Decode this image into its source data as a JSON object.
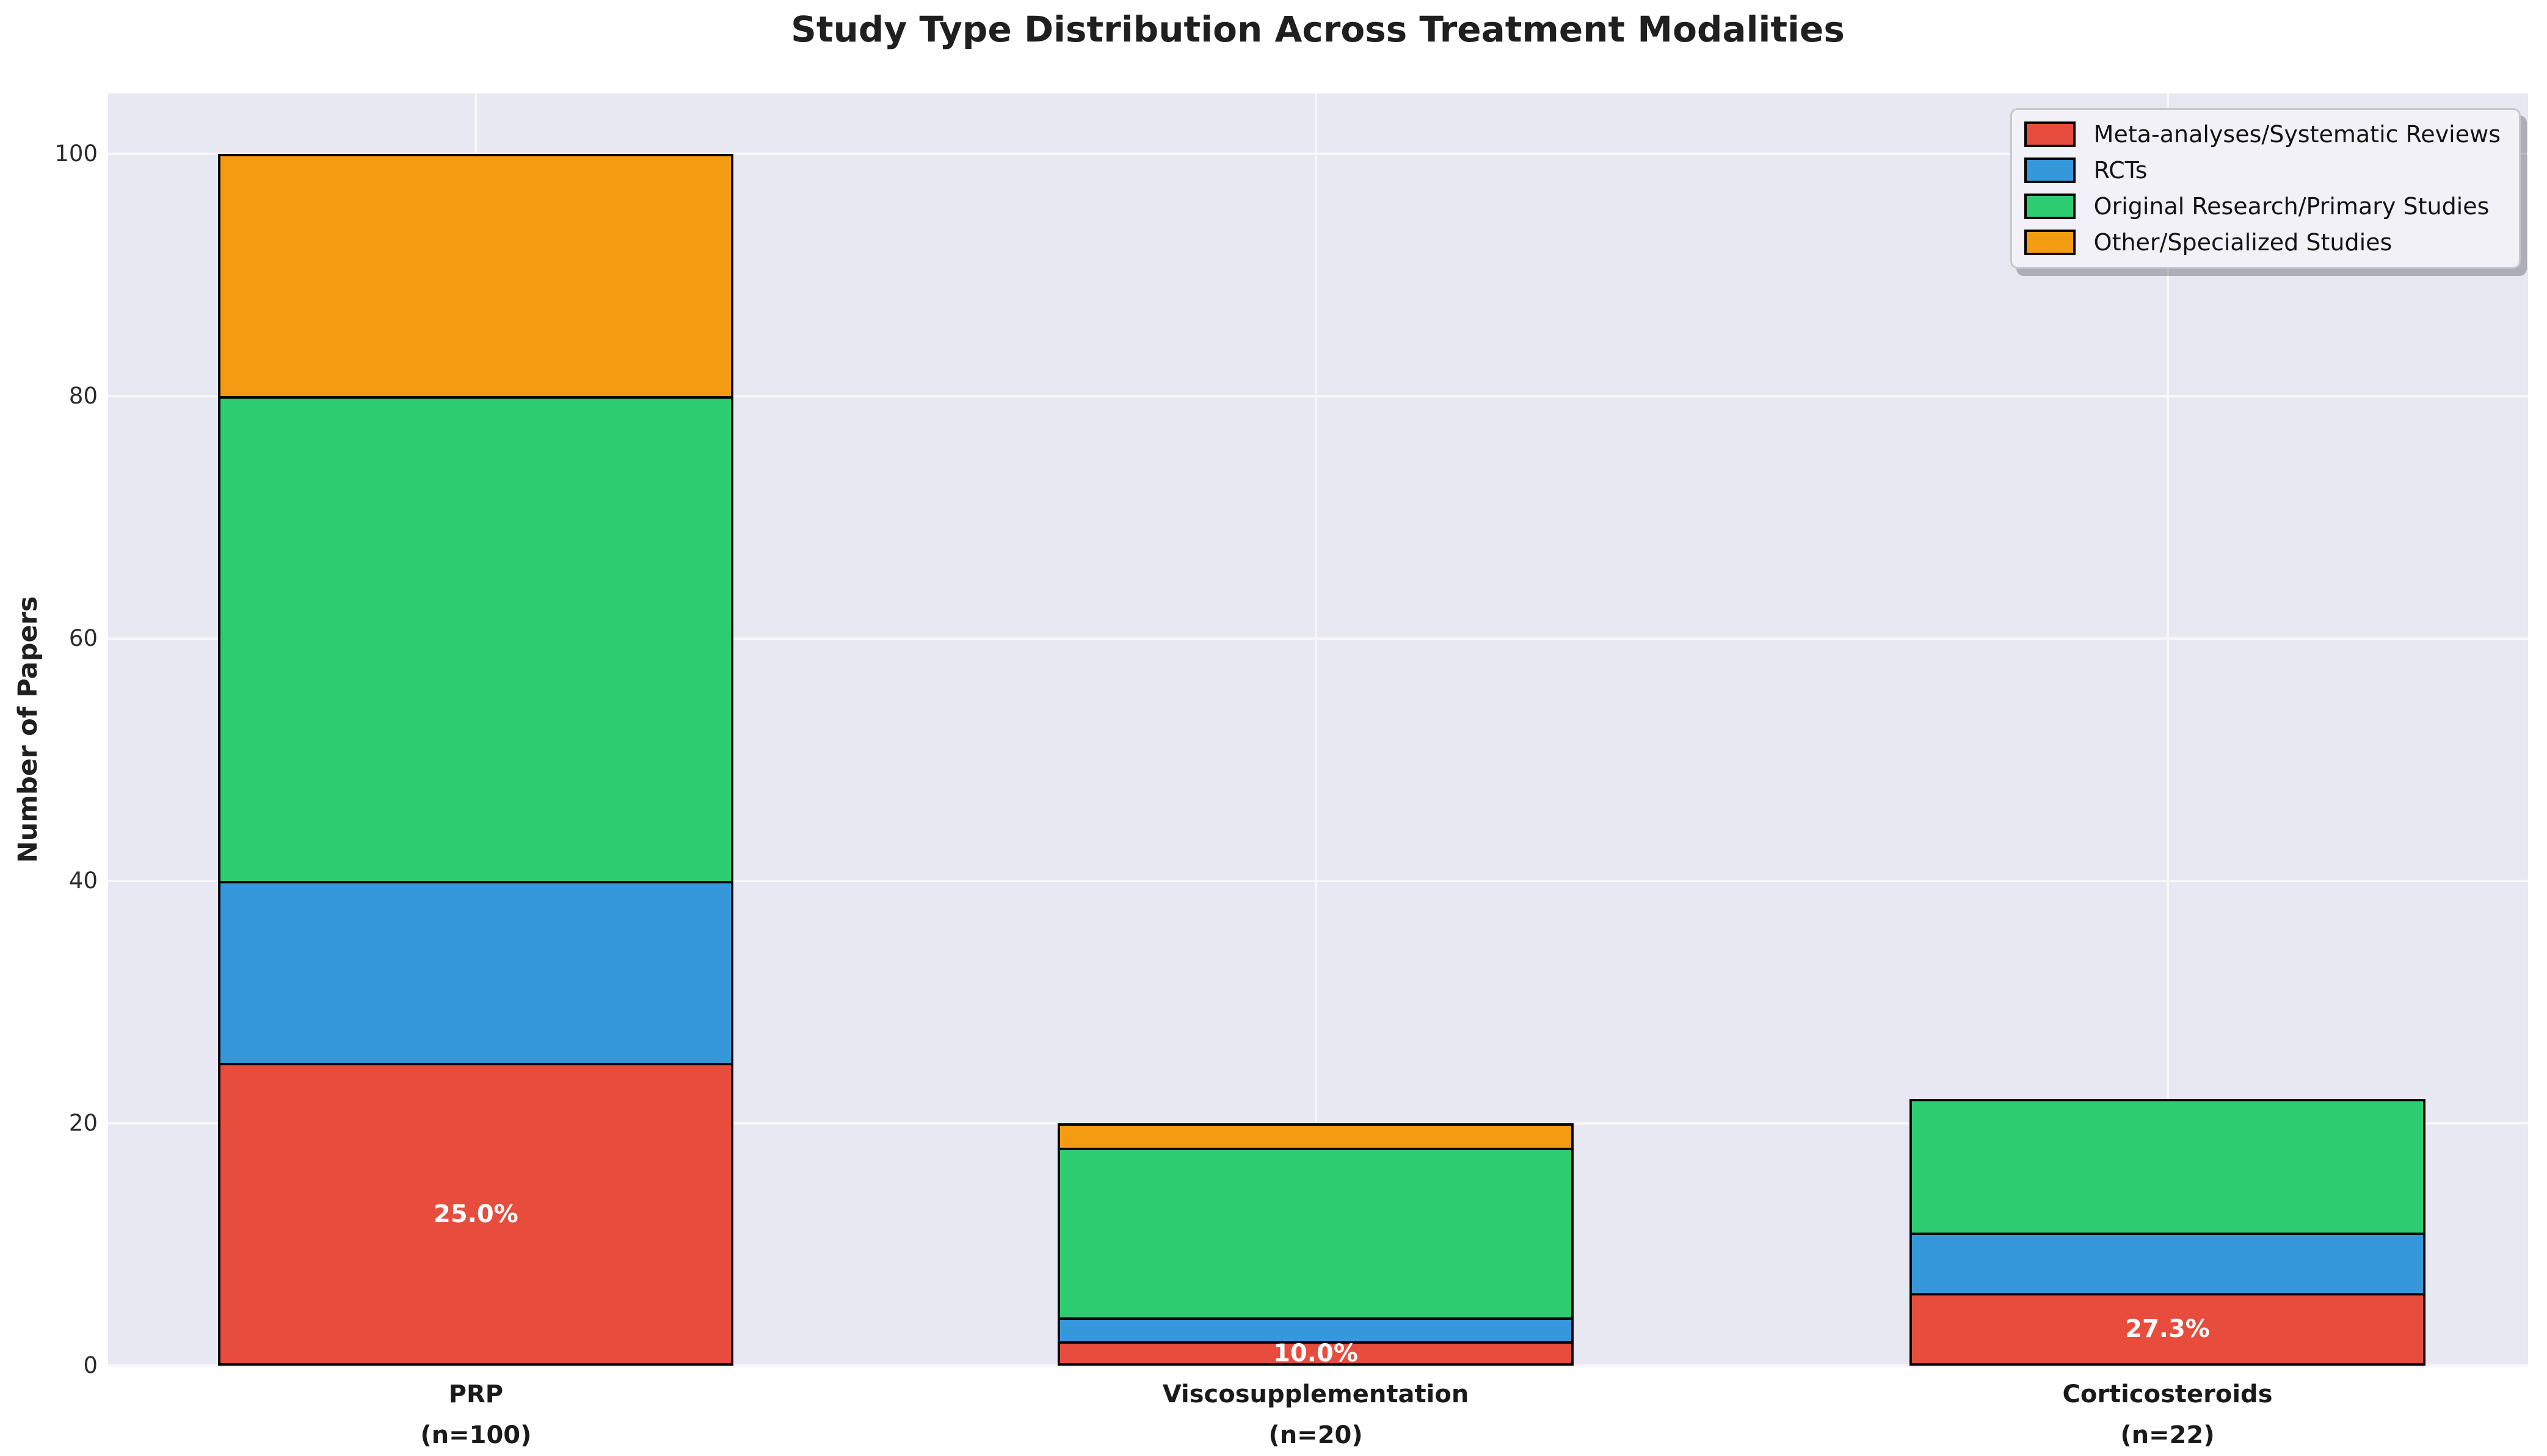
{
  "chart_data": {
    "type": "bar",
    "stacked": true,
    "title": "Study Type Distribution Across Treatment Modalities",
    "xlabel": "",
    "ylabel": "Number of Papers",
    "ylim": [
      0,
      105
    ],
    "yticks": [
      0,
      20,
      40,
      60,
      80,
      100
    ],
    "grid": true,
    "legend_position": "upper right",
    "categories": [
      {
        "label": "PRP",
        "sublabel": "(n=100)",
        "n": 100
      },
      {
        "label": "Viscosupplementation",
        "sublabel": "(n=20)",
        "n": 20
      },
      {
        "label": "Corticosteroids",
        "sublabel": "(n=22)",
        "n": 22
      }
    ],
    "series": [
      {
        "name": "Meta-analyses/Systematic Reviews",
        "color": "#e74c3c",
        "values": [
          25,
          2,
          6
        ]
      },
      {
        "name": "RCTs",
        "color": "#3498db",
        "values": [
          15,
          2,
          5
        ]
      },
      {
        "name": "Original Research/Primary Studies",
        "color": "#2ecc71",
        "values": [
          40,
          14,
          11
        ]
      },
      {
        "name": "Other/Specialized Studies",
        "color": "#f39c12",
        "values": [
          20,
          2,
          0
        ]
      }
    ],
    "bar_labels": [
      {
        "category": 0,
        "series": 0,
        "text": "25.0%"
      },
      {
        "category": 1,
        "series": 0,
        "text": "10.0%"
      },
      {
        "category": 2,
        "series": 0,
        "text": "27.3%"
      }
    ]
  },
  "colors": {
    "figure_bg": "#ffffff",
    "plot_bg": "#e8e8f2",
    "gridline": "#f7f7fa",
    "bar_edge": "#000000",
    "bar_label_text": "#ffffff",
    "legend_bg": "#f1f1f7",
    "legend_border": "#c7c7cf",
    "title_text": "#1f1f1f",
    "tick_text": "#2b2b2b"
  }
}
